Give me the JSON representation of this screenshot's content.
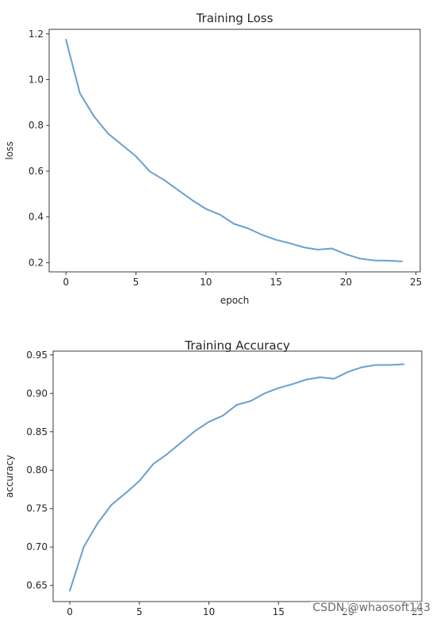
{
  "chart_data": [
    {
      "type": "line",
      "title": "Training Loss",
      "xlabel": "epoch",
      "ylabel": "loss",
      "xlim": [
        -1.2,
        25.3
      ],
      "ylim": [
        0.16,
        1.22
      ],
      "xticks": [
        0,
        5,
        10,
        15,
        20,
        25
      ],
      "yticks": [
        0.2,
        0.4,
        0.6,
        0.8,
        1.0,
        1.2
      ],
      "ytick_labels": [
        "0.2",
        "0.4",
        "0.6",
        "0.8",
        "1.0",
        "1.2"
      ],
      "grid": false,
      "series": [
        {
          "color": "#6a9fd0",
          "x": [
            0,
            1,
            2,
            3,
            4,
            5,
            6,
            7,
            8,
            9,
            10,
            11,
            12,
            13,
            14,
            15,
            16,
            17,
            18,
            19,
            20,
            21,
            22,
            23,
            24
          ],
          "y": [
            1.175,
            0.94,
            0.84,
            0.765,
            0.715,
            0.665,
            0.598,
            0.562,
            0.518,
            0.474,
            0.435,
            0.41,
            0.37,
            0.35,
            0.322,
            0.3,
            0.285,
            0.267,
            0.257,
            0.262,
            0.237,
            0.218,
            0.21,
            0.209,
            0.206
          ]
        }
      ]
    },
    {
      "type": "line",
      "title": "Training Accuracy",
      "xlabel": "",
      "ylabel": "accuracy",
      "xlim": [
        -1.2,
        25.3
      ],
      "ylim": [
        0.629,
        0.955
      ],
      "xticks": [
        0,
        5,
        10,
        15,
        20,
        25
      ],
      "yticks": [
        0.65,
        0.7,
        0.75,
        0.8,
        0.85,
        0.9,
        0.95
      ],
      "ytick_labels": [
        "0.65",
        "0.70",
        "0.75",
        "0.80",
        "0.85",
        "0.90",
        "0.95"
      ],
      "grid": false,
      "series": [
        {
          "color": "#6a9fd0",
          "x": [
            0,
            1,
            2,
            3,
            4,
            5,
            6,
            7,
            8,
            9,
            10,
            11,
            12,
            13,
            14,
            15,
            16,
            17,
            18,
            19,
            20,
            21,
            22,
            23,
            24
          ],
          "y": [
            0.643,
            0.7,
            0.731,
            0.755,
            0.77,
            0.786,
            0.808,
            0.821,
            0.836,
            0.851,
            0.863,
            0.871,
            0.885,
            0.89,
            0.9,
            0.907,
            0.912,
            0.918,
            0.921,
            0.919,
            0.928,
            0.934,
            0.937,
            0.937,
            0.938
          ]
        }
      ]
    }
  ],
  "watermark": "CSDN @whaosoft143"
}
